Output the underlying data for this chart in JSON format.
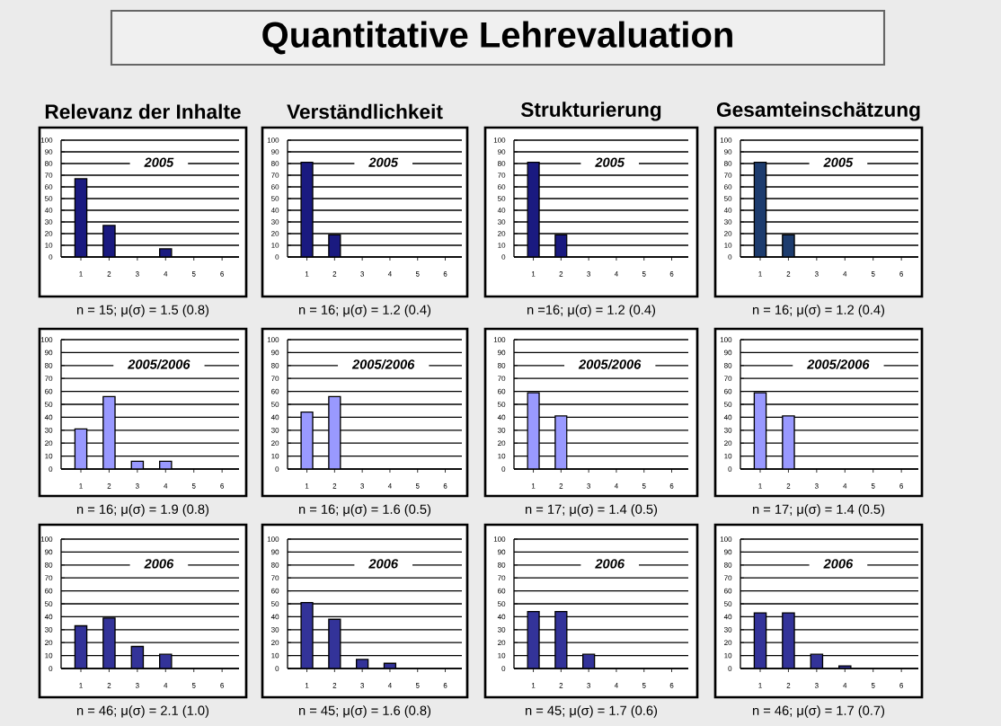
{
  "chart_data": [
    {
      "type": "other",
      "title": "Quantitative Lehrevaluation"
    },
    {
      "type": "bar",
      "title": "Relevanz der Inhalte",
      "subtitle": "2005",
      "categories": [
        "1",
        "2",
        "3",
        "4",
        "5",
        "6"
      ],
      "values": [
        67,
        27,
        null,
        7,
        null,
        null
      ],
      "color": "#1a1a80",
      "ylim": [
        0,
        100
      ],
      "yticks": [
        0,
        10,
        20,
        30,
        40,
        50,
        60,
        70,
        80,
        90,
        100
      ],
      "grid": "y",
      "annotations": [
        "n = 15; μ(σ) = 1.5 (0.8)"
      ]
    },
    {
      "type": "bar",
      "title": "Verständlichkeit",
      "subtitle": "2005",
      "categories": [
        "1",
        "2",
        "3",
        "4",
        "5",
        "6"
      ],
      "values": [
        81,
        19,
        null,
        null,
        null,
        null
      ],
      "color": "#1a1a80",
      "ylim": [
        0,
        100
      ],
      "yticks": [
        0,
        10,
        20,
        30,
        40,
        50,
        60,
        70,
        80,
        90,
        100
      ],
      "grid": "y",
      "annotations": [
        "n = 16; μ(σ) = 1.2 (0.4)"
      ]
    },
    {
      "type": "bar",
      "title": "Strukturierung",
      "subtitle": "2005",
      "categories": [
        "1",
        "2",
        "3",
        "4",
        "5",
        "6"
      ],
      "values": [
        81,
        19,
        null,
        null,
        null,
        null
      ],
      "color": "#1a1a80",
      "ylim": [
        0,
        100
      ],
      "yticks": [
        0,
        10,
        20,
        30,
        40,
        50,
        60,
        70,
        80,
        90,
        100
      ],
      "grid": "y",
      "annotations": [
        "n =16; μ(σ) = 1.2 (0.4)"
      ]
    },
    {
      "type": "bar",
      "title": "Gesamteinschätzung",
      "subtitle": "2005",
      "categories": [
        "1",
        "2",
        "3",
        "4",
        "5",
        "6"
      ],
      "values": [
        81,
        19,
        null,
        null,
        null,
        null
      ],
      "color": "#1d3c6e",
      "ylim": [
        0,
        100
      ],
      "yticks": [
        0,
        10,
        20,
        30,
        40,
        50,
        60,
        70,
        80,
        90,
        100
      ],
      "grid": "y",
      "annotations": [
        "n = 16; μ(σ) = 1.2 (0.4)"
      ]
    },
    {
      "type": "bar",
      "subtitle": "2005/2006",
      "categories": [
        "1",
        "2",
        "3",
        "4",
        "5",
        "6"
      ],
      "values": [
        31,
        56,
        6,
        6,
        null,
        null
      ],
      "color": "#9999ff",
      "ylim": [
        0,
        100
      ],
      "yticks": [
        0,
        10,
        20,
        30,
        40,
        50,
        60,
        70,
        80,
        90,
        100
      ],
      "grid": "y",
      "annotations": [
        "n = 16; μ(σ) = 1.9 (0.8)"
      ]
    },
    {
      "type": "bar",
      "subtitle": "2005/2006",
      "categories": [
        "1",
        "2",
        "3",
        "4",
        "5",
        "6"
      ],
      "values": [
        44,
        56,
        null,
        null,
        null,
        null
      ],
      "color": "#9999ff",
      "ylim": [
        0,
        100
      ],
      "yticks": [
        0,
        10,
        20,
        30,
        40,
        50,
        60,
        70,
        80,
        90,
        100
      ],
      "grid": "y",
      "annotations": [
        "n = 16; μ(σ) = 1.6 (0.5)"
      ]
    },
    {
      "type": "bar",
      "subtitle": "2005/2006",
      "categories": [
        "1",
        "2",
        "3",
        "4",
        "5",
        "6"
      ],
      "values": [
        59,
        41,
        null,
        null,
        null,
        null
      ],
      "color": "#9999ff",
      "ylim": [
        0,
        100
      ],
      "yticks": [
        0,
        10,
        20,
        30,
        40,
        50,
        60,
        70,
        80,
        90,
        100
      ],
      "grid": "y",
      "annotations": [
        "n = 17; μ(σ) = 1.4 (0.5)"
      ]
    },
    {
      "type": "bar",
      "subtitle": "2005/2006",
      "categories": [
        "1",
        "2",
        "3",
        "4",
        "5",
        "6"
      ],
      "values": [
        59,
        41,
        null,
        null,
        null,
        null
      ],
      "color": "#9999ff",
      "ylim": [
        0,
        100
      ],
      "yticks": [
        0,
        10,
        20,
        30,
        40,
        50,
        60,
        70,
        80,
        90,
        100
      ],
      "grid": "y",
      "annotations": [
        "n = 17; μ(σ) = 1.4 (0.5)"
      ]
    },
    {
      "type": "bar",
      "subtitle": "2006",
      "categories": [
        "1",
        "2",
        "3",
        "4",
        "5",
        "6"
      ],
      "values": [
        33,
        39,
        17,
        11,
        null,
        null
      ],
      "color": "#333399",
      "ylim": [
        0,
        100
      ],
      "yticks": [
        0,
        10,
        20,
        30,
        40,
        50,
        60,
        70,
        80,
        90,
        100
      ],
      "grid": "y",
      "annotations": [
        "n = 46; μ(σ) = 2.1 (1.0)"
      ]
    },
    {
      "type": "bar",
      "subtitle": "2006",
      "categories": [
        "1",
        "2",
        "3",
        "4",
        "5",
        "6"
      ],
      "values": [
        51,
        38,
        7,
        4,
        null,
        null
      ],
      "color": "#333399",
      "ylim": [
        0,
        100
      ],
      "yticks": [
        0,
        10,
        20,
        30,
        40,
        50,
        60,
        70,
        80,
        90,
        100
      ],
      "grid": "y",
      "annotations": [
        "n = 45; μ(σ) = 1.6 (0.8)"
      ]
    },
    {
      "type": "bar",
      "subtitle": "2006",
      "categories": [
        "1",
        "2",
        "3",
        "4",
        "5",
        "6"
      ],
      "values": [
        44,
        44,
        11,
        null,
        null,
        null
      ],
      "color": "#333399",
      "ylim": [
        0,
        100
      ],
      "yticks": [
        0,
        10,
        20,
        30,
        40,
        50,
        60,
        70,
        80,
        90,
        100
      ],
      "grid": "y",
      "annotations": [
        "n = 45; μ(σ) = 1.7 (0.6)"
      ]
    },
    {
      "type": "bar",
      "subtitle": "2006",
      "categories": [
        "1",
        "2",
        "3",
        "4",
        "5",
        "6"
      ],
      "values": [
        43,
        43,
        11,
        2,
        null,
        null
      ],
      "color": "#333399",
      "ylim": [
        0,
        100
      ],
      "yticks": [
        0,
        10,
        20,
        30,
        40,
        50,
        60,
        70,
        80,
        90,
        100
      ],
      "grid": "y",
      "annotations": [
        "n = 46; μ(σ) = 1.7 (0.7)"
      ]
    }
  ]
}
